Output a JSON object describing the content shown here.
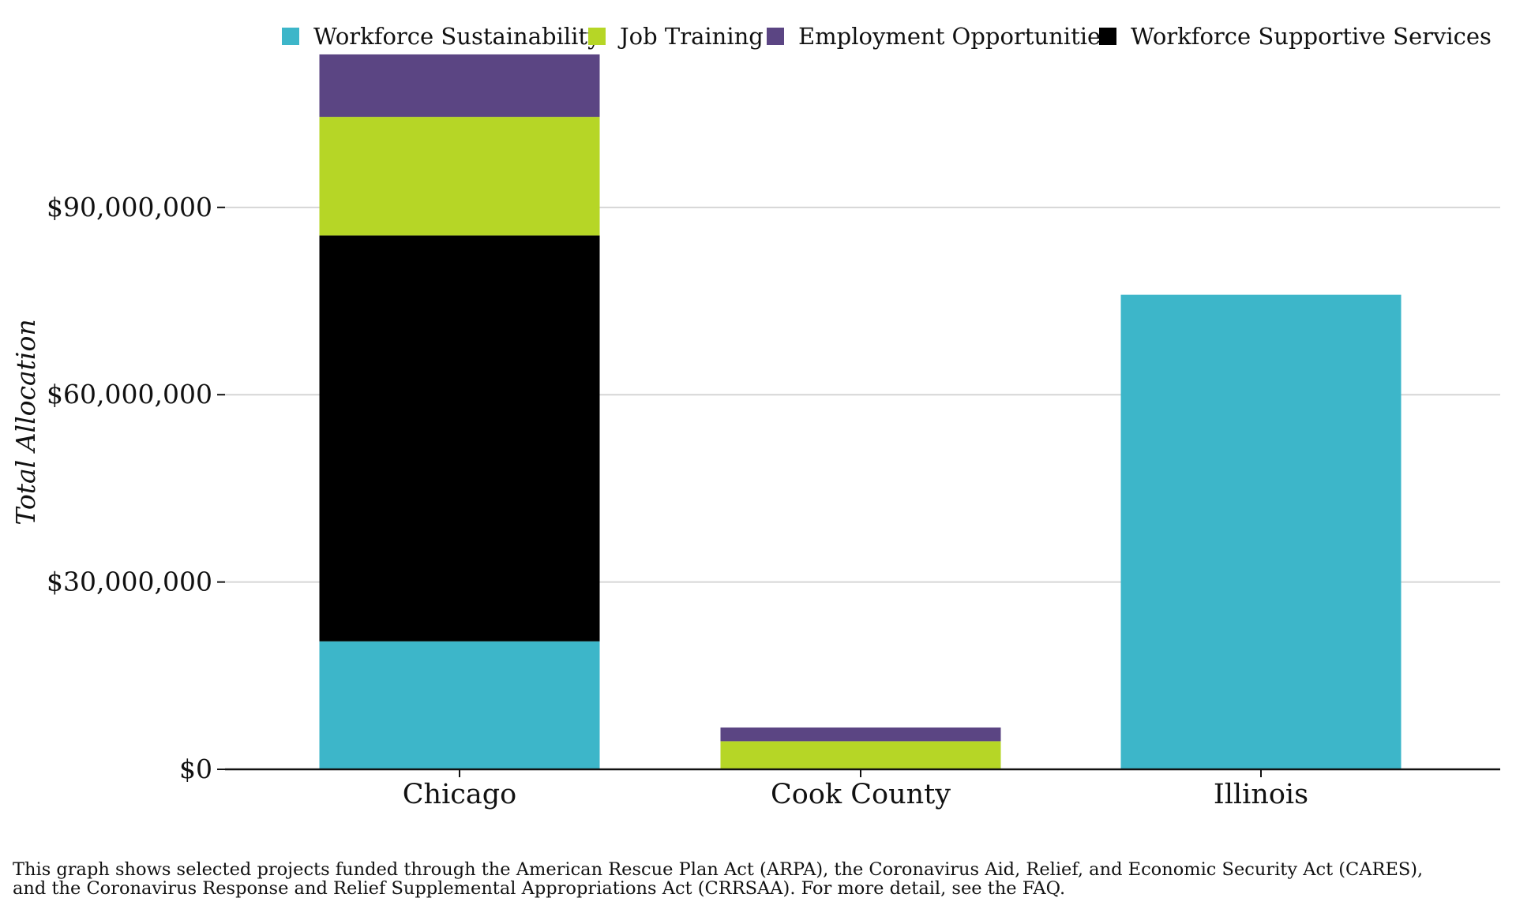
{
  "chart_data": {
    "type": "bar",
    "stacked": true,
    "categories": [
      "Chicago",
      "Cook County",
      "Illinois"
    ],
    "series": [
      {
        "name": "Workforce Sustainability",
        "color": "#3db6c9",
        "values": [
          20500000,
          0,
          76000000
        ]
      },
      {
        "name": "Workforce Supportive Services",
        "color": "#000000",
        "values": [
          65000000,
          0,
          0
        ]
      },
      {
        "name": "Job Training",
        "color": "#b6d626",
        "values": [
          19000000,
          4500000,
          0
        ]
      },
      {
        "name": "Employment Opportunities",
        "color": "#5b4583",
        "values": [
          10000000,
          2200000,
          0
        ]
      }
    ],
    "legend": {
      "placement": "top",
      "order": [
        "Workforce Sustainability",
        "Job Training",
        "Employment Opportunities",
        "Workforce Supportive Services"
      ]
    },
    "title": "",
    "xlabel": "",
    "ylabel": "Total Allocation",
    "ylim": [
      0,
      115000000
    ],
    "yticks": [
      0,
      30000000,
      60000000,
      90000000
    ],
    "ytick_labels": [
      "$0",
      "$30,000,000",
      "$60,000,000",
      "$90,000,000"
    ],
    "grid": "horizontal"
  },
  "footnote": {
    "line1": "This graph shows selected projects funded through the American Rescue Plan Act (ARPA), the Coronavirus Aid, Relief, and Economic Security Act (CARES),",
    "line2": "and the Coronavirus Response and Relief Supplemental Appropriations Act (CRRSAA). For more detail, see the FAQ."
  }
}
